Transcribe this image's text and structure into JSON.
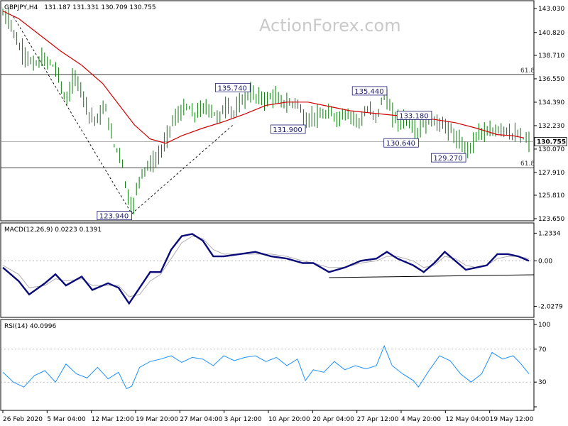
{
  "watermark": "ActionForex.com",
  "chart_data": [
    {
      "type": "candlestick",
      "title": "GBPJPY,H4",
      "ohlc": {
        "open": 131.187,
        "high": 131.331,
        "low": 130.709,
        "close": 130.755
      },
      "ohlc_text": "131.187 131.331 130.709 130.755",
      "y_ticks": [
        143.03,
        140.82,
        138.71,
        136.55,
        134.39,
        132.23,
        130.07,
        127.91,
        125.81,
        123.65
      ],
      "y_tick_labels": [
        "143.030",
        "140.820",
        "138.710",
        "136.550",
        "134.390",
        "132.230",
        "130.070",
        "127.910",
        "125.810",
        "123.650"
      ],
      "ylim": [
        123.65,
        143.03
      ],
      "last_price": 130.755,
      "last_price_label": "130.755",
      "x_tick_labels": [
        "26 Feb 2020",
        "5 Mar 04:00",
        "12 Mar 12:00",
        "19 Mar 20:00",
        "27 Mar 04:00",
        "3 Apr 12:00",
        "10 Apr 20:00",
        "20 Apr 04:00",
        "27 Apr 12:00",
        "4 May 20:00",
        "12 May 04:00",
        "19 May 12:00"
      ],
      "fib_levels": [
        {
          "value": 136.95,
          "label": "61.8"
        },
        {
          "value": 128.35,
          "label": "61.8"
        }
      ],
      "annotations": [
        {
          "label": "135.740",
          "value": 135.74,
          "pos": 0.47
        },
        {
          "label": "135.440",
          "value": 135.44,
          "pos": 0.73
        },
        {
          "label": "133.180",
          "value": 133.18,
          "pos": 0.815
        },
        {
          "label": "131.900",
          "value": 131.9,
          "pos": 0.575
        },
        {
          "label": "130.640",
          "value": 130.64,
          "pos": 0.79
        },
        {
          "label": "129.270",
          "value": 129.27,
          "pos": 0.88
        },
        {
          "label": "123.940",
          "value": 123.94,
          "pos": 0.245
        }
      ],
      "trend_lines": [
        [
          {
            "t": 0.02,
            "v": 142.3
          },
          {
            "t": 0.245,
            "v": 124.1
          }
        ],
        [
          {
            "t": 0.245,
            "v": 124.1
          },
          {
            "t": 0.44,
            "v": 132.4
          }
        ]
      ],
      "ma_line": [
        {
          "t": 0.0,
          "v": 142.8
        },
        {
          "t": 0.03,
          "v": 142.1
        },
        {
          "t": 0.07,
          "v": 140.6
        },
        {
          "t": 0.11,
          "v": 139.1
        },
        {
          "t": 0.15,
          "v": 137.8
        },
        {
          "t": 0.19,
          "v": 136.1
        },
        {
          "t": 0.22,
          "v": 134.2
        },
        {
          "t": 0.25,
          "v": 132.3
        },
        {
          "t": 0.28,
          "v": 131.0
        },
        {
          "t": 0.31,
          "v": 130.6
        },
        {
          "t": 0.34,
          "v": 131.3
        },
        {
          "t": 0.38,
          "v": 132.0
        },
        {
          "t": 0.42,
          "v": 132.6
        },
        {
          "t": 0.46,
          "v": 133.3
        },
        {
          "t": 0.5,
          "v": 134.1
        },
        {
          "t": 0.54,
          "v": 134.4
        },
        {
          "t": 0.58,
          "v": 134.4
        },
        {
          "t": 0.62,
          "v": 134.0
        },
        {
          "t": 0.66,
          "v": 133.6
        },
        {
          "t": 0.7,
          "v": 133.4
        },
        {
          "t": 0.74,
          "v": 133.2
        },
        {
          "t": 0.78,
          "v": 133.0
        },
        {
          "t": 0.82,
          "v": 132.8
        },
        {
          "t": 0.86,
          "v": 132.5
        },
        {
          "t": 0.9,
          "v": 132.0
        },
        {
          "t": 0.94,
          "v": 131.4
        },
        {
          "t": 0.97,
          "v": 131.3
        },
        {
          "t": 0.99,
          "v": 131.1
        }
      ],
      "price_path": [
        {
          "t": 0.0,
          "v": 142.5
        },
        {
          "t": 0.015,
          "v": 141.8
        },
        {
          "t": 0.03,
          "v": 139.5
        },
        {
          "t": 0.045,
          "v": 138.6
        },
        {
          "t": 0.06,
          "v": 137.8
        },
        {
          "t": 0.075,
          "v": 138.3
        },
        {
          "t": 0.09,
          "v": 138.1
        },
        {
          "t": 0.105,
          "v": 137.1
        },
        {
          "t": 0.12,
          "v": 134.2
        },
        {
          "t": 0.135,
          "v": 136.8
        },
        {
          "t": 0.15,
          "v": 135.5
        },
        {
          "t": 0.165,
          "v": 133.2
        },
        {
          "t": 0.18,
          "v": 132.8
        },
        {
          "t": 0.195,
          "v": 134.0
        },
        {
          "t": 0.21,
          "v": 130.6
        },
        {
          "t": 0.225,
          "v": 129.5
        },
        {
          "t": 0.235,
          "v": 126.2
        },
        {
          "t": 0.245,
          "v": 124.3
        },
        {
          "t": 0.26,
          "v": 127.5
        },
        {
          "t": 0.275,
          "v": 128.6
        },
        {
          "t": 0.29,
          "v": 128.9
        },
        {
          "t": 0.305,
          "v": 130.3
        },
        {
          "t": 0.32,
          "v": 132.4
        },
        {
          "t": 0.335,
          "v": 133.3
        },
        {
          "t": 0.35,
          "v": 134.0
        },
        {
          "t": 0.365,
          "v": 133.2
        },
        {
          "t": 0.38,
          "v": 133.9
        },
        {
          "t": 0.395,
          "v": 133.7
        },
        {
          "t": 0.41,
          "v": 132.9
        },
        {
          "t": 0.425,
          "v": 134.1
        },
        {
          "t": 0.44,
          "v": 133.4
        },
        {
          "t": 0.455,
          "v": 134.6
        },
        {
          "t": 0.47,
          "v": 135.2
        },
        {
          "t": 0.485,
          "v": 134.9
        },
        {
          "t": 0.5,
          "v": 134.6
        },
        {
          "t": 0.515,
          "v": 135.0
        },
        {
          "t": 0.53,
          "v": 134.4
        },
        {
          "t": 0.545,
          "v": 134.2
        },
        {
          "t": 0.56,
          "v": 134.5
        },
        {
          "t": 0.575,
          "v": 132.4
        },
        {
          "t": 0.59,
          "v": 133.2
        },
        {
          "t": 0.605,
          "v": 133.0
        },
        {
          "t": 0.62,
          "v": 133.4
        },
        {
          "t": 0.635,
          "v": 132.9
        },
        {
          "t": 0.65,
          "v": 133.3
        },
        {
          "t": 0.665,
          "v": 133.1
        },
        {
          "t": 0.68,
          "v": 132.6
        },
        {
          "t": 0.695,
          "v": 133.8
        },
        {
          "t": 0.71,
          "v": 133.0
        },
        {
          "t": 0.725,
          "v": 135.1
        },
        {
          "t": 0.74,
          "v": 133.3
        },
        {
          "t": 0.755,
          "v": 132.6
        },
        {
          "t": 0.77,
          "v": 132.9
        },
        {
          "t": 0.785,
          "v": 131.4
        },
        {
          "t": 0.8,
          "v": 132.3
        },
        {
          "t": 0.815,
          "v": 132.8
        },
        {
          "t": 0.83,
          "v": 132.4
        },
        {
          "t": 0.845,
          "v": 132.1
        },
        {
          "t": 0.86,
          "v": 131.2
        },
        {
          "t": 0.875,
          "v": 130.2
        },
        {
          "t": 0.89,
          "v": 130.3
        },
        {
          "t": 0.905,
          "v": 131.8
        },
        {
          "t": 0.92,
          "v": 131.5
        },
        {
          "t": 0.935,
          "v": 131.7
        },
        {
          "t": 0.95,
          "v": 132.0
        },
        {
          "t": 0.965,
          "v": 131.5
        },
        {
          "t": 0.985,
          "v": 131.2
        },
        {
          "t": 1.0,
          "v": 130.8
        }
      ]
    },
    {
      "type": "line",
      "title": "MACD(12,26,9) 0.0223 0.1391",
      "y_tick_labels": [
        "1.2334",
        "0.00",
        "-2.0279"
      ],
      "y_ticks": [
        1.2334,
        0.0,
        -2.0279
      ],
      "ylim": [
        -2.3,
        1.5
      ],
      "support_line": [
        {
          "t": 0.62,
          "v": -0.75
        },
        {
          "t": 1.0,
          "v": -0.62
        }
      ],
      "macd": [
        {
          "t": 0.0,
          "v": -0.3
        },
        {
          "t": 0.03,
          "v": -0.9
        },
        {
          "t": 0.05,
          "v": -1.5
        },
        {
          "t": 0.08,
          "v": -1.0
        },
        {
          "t": 0.1,
          "v": -0.6
        },
        {
          "t": 0.12,
          "v": -1.1
        },
        {
          "t": 0.15,
          "v": -0.7
        },
        {
          "t": 0.17,
          "v": -1.3
        },
        {
          "t": 0.2,
          "v": -1.0
        },
        {
          "t": 0.22,
          "v": -1.2
        },
        {
          "t": 0.24,
          "v": -1.9
        },
        {
          "t": 0.26,
          "v": -1.2
        },
        {
          "t": 0.28,
          "v": -0.5
        },
        {
          "t": 0.3,
          "v": -0.5
        },
        {
          "t": 0.32,
          "v": 0.5
        },
        {
          "t": 0.34,
          "v": 1.1
        },
        {
          "t": 0.36,
          "v": 1.2
        },
        {
          "t": 0.38,
          "v": 0.9
        },
        {
          "t": 0.4,
          "v": 0.2
        },
        {
          "t": 0.42,
          "v": 0.2
        },
        {
          "t": 0.45,
          "v": 0.3
        },
        {
          "t": 0.48,
          "v": 0.4
        },
        {
          "t": 0.51,
          "v": 0.2
        },
        {
          "t": 0.54,
          "v": 0.1
        },
        {
          "t": 0.57,
          "v": -0.1
        },
        {
          "t": 0.59,
          "v": -0.1
        },
        {
          "t": 0.62,
          "v": -0.5
        },
        {
          "t": 0.65,
          "v": -0.3
        },
        {
          "t": 0.68,
          "v": 0.0
        },
        {
          "t": 0.71,
          "v": 0.1
        },
        {
          "t": 0.73,
          "v": 0.4
        },
        {
          "t": 0.75,
          "v": 0.1
        },
        {
          "t": 0.78,
          "v": -0.2
        },
        {
          "t": 0.8,
          "v": -0.5
        },
        {
          "t": 0.82,
          "v": -0.1
        },
        {
          "t": 0.84,
          "v": 0.4
        },
        {
          "t": 0.86,
          "v": 0.0
        },
        {
          "t": 0.88,
          "v": -0.4
        },
        {
          "t": 0.9,
          "v": -0.3
        },
        {
          "t": 0.92,
          "v": -0.2
        },
        {
          "t": 0.94,
          "v": 0.3
        },
        {
          "t": 0.96,
          "v": 0.3
        },
        {
          "t": 0.98,
          "v": 0.2
        },
        {
          "t": 1.0,
          "v": 0.0
        }
      ],
      "signal": [
        {
          "t": 0.0,
          "v": -0.2
        },
        {
          "t": 0.03,
          "v": -0.6
        },
        {
          "t": 0.05,
          "v": -1.2
        },
        {
          "t": 0.08,
          "v": -1.1
        },
        {
          "t": 0.1,
          "v": -0.8
        },
        {
          "t": 0.12,
          "v": -0.9
        },
        {
          "t": 0.15,
          "v": -0.8
        },
        {
          "t": 0.17,
          "v": -1.1
        },
        {
          "t": 0.2,
          "v": -1.1
        },
        {
          "t": 0.22,
          "v": -1.1
        },
        {
          "t": 0.24,
          "v": -1.6
        },
        {
          "t": 0.26,
          "v": -1.5
        },
        {
          "t": 0.28,
          "v": -0.9
        },
        {
          "t": 0.3,
          "v": -0.6
        },
        {
          "t": 0.32,
          "v": 0.1
        },
        {
          "t": 0.34,
          "v": 0.8
        },
        {
          "t": 0.36,
          "v": 1.1
        },
        {
          "t": 0.38,
          "v": 1.0
        },
        {
          "t": 0.4,
          "v": 0.5
        },
        {
          "t": 0.42,
          "v": 0.3
        },
        {
          "t": 0.45,
          "v": 0.3
        },
        {
          "t": 0.48,
          "v": 0.3
        },
        {
          "t": 0.51,
          "v": 0.3
        },
        {
          "t": 0.54,
          "v": 0.2
        },
        {
          "t": 0.57,
          "v": 0.0
        },
        {
          "t": 0.59,
          "v": -0.1
        },
        {
          "t": 0.62,
          "v": -0.3
        },
        {
          "t": 0.65,
          "v": -0.3
        },
        {
          "t": 0.68,
          "v": -0.1
        },
        {
          "t": 0.71,
          "v": 0.0
        },
        {
          "t": 0.73,
          "v": 0.2
        },
        {
          "t": 0.75,
          "v": 0.2
        },
        {
          "t": 0.78,
          "v": 0.0
        },
        {
          "t": 0.8,
          "v": -0.3
        },
        {
          "t": 0.82,
          "v": -0.2
        },
        {
          "t": 0.84,
          "v": 0.2
        },
        {
          "t": 0.86,
          "v": 0.1
        },
        {
          "t": 0.88,
          "v": -0.2
        },
        {
          "t": 0.9,
          "v": -0.3
        },
        {
          "t": 0.92,
          "v": -0.2
        },
        {
          "t": 0.94,
          "v": 0.1
        },
        {
          "t": 0.96,
          "v": 0.2
        },
        {
          "t": 0.98,
          "v": 0.2
        },
        {
          "t": 1.0,
          "v": 0.1
        }
      ]
    },
    {
      "type": "line",
      "title": "RSI(14) 40.0996",
      "y_ticks": [
        100,
        70,
        30,
        0
      ],
      "y_tick_labels": [
        "100",
        "70",
        "30",
        "0"
      ],
      "levels": [
        70,
        30
      ],
      "ylim": [
        0,
        100
      ],
      "rsi": [
        {
          "t": 0.0,
          "v": 42
        },
        {
          "t": 0.02,
          "v": 30
        },
        {
          "t": 0.04,
          "v": 24
        },
        {
          "t": 0.06,
          "v": 38
        },
        {
          "t": 0.08,
          "v": 44
        },
        {
          "t": 0.1,
          "v": 30
        },
        {
          "t": 0.12,
          "v": 52
        },
        {
          "t": 0.14,
          "v": 40
        },
        {
          "t": 0.16,
          "v": 35
        },
        {
          "t": 0.18,
          "v": 48
        },
        {
          "t": 0.2,
          "v": 34
        },
        {
          "t": 0.22,
          "v": 42
        },
        {
          "t": 0.235,
          "v": 22
        },
        {
          "t": 0.245,
          "v": 25
        },
        {
          "t": 0.26,
          "v": 48
        },
        {
          "t": 0.28,
          "v": 55
        },
        {
          "t": 0.3,
          "v": 58
        },
        {
          "t": 0.32,
          "v": 62
        },
        {
          "t": 0.34,
          "v": 54
        },
        {
          "t": 0.36,
          "v": 60
        },
        {
          "t": 0.38,
          "v": 58
        },
        {
          "t": 0.4,
          "v": 50
        },
        {
          "t": 0.42,
          "v": 62
        },
        {
          "t": 0.44,
          "v": 56
        },
        {
          "t": 0.46,
          "v": 60
        },
        {
          "t": 0.48,
          "v": 62
        },
        {
          "t": 0.5,
          "v": 55
        },
        {
          "t": 0.52,
          "v": 60
        },
        {
          "t": 0.54,
          "v": 50
        },
        {
          "t": 0.56,
          "v": 58
        },
        {
          "t": 0.575,
          "v": 32
        },
        {
          "t": 0.59,
          "v": 45
        },
        {
          "t": 0.61,
          "v": 42
        },
        {
          "t": 0.63,
          "v": 55
        },
        {
          "t": 0.65,
          "v": 45
        },
        {
          "t": 0.67,
          "v": 50
        },
        {
          "t": 0.69,
          "v": 46
        },
        {
          "t": 0.71,
          "v": 50
        },
        {
          "t": 0.725,
          "v": 74
        },
        {
          "t": 0.74,
          "v": 50
        },
        {
          "t": 0.76,
          "v": 40
        },
        {
          "t": 0.78,
          "v": 32
        },
        {
          "t": 0.79,
          "v": 24
        },
        {
          "t": 0.81,
          "v": 44
        },
        {
          "t": 0.83,
          "v": 62
        },
        {
          "t": 0.85,
          "v": 56
        },
        {
          "t": 0.87,
          "v": 40
        },
        {
          "t": 0.89,
          "v": 30
        },
        {
          "t": 0.91,
          "v": 40
        },
        {
          "t": 0.93,
          "v": 66
        },
        {
          "t": 0.95,
          "v": 58
        },
        {
          "t": 0.97,
          "v": 62
        },
        {
          "t": 0.985,
          "v": 52
        },
        {
          "t": 1.0,
          "v": 40
        }
      ]
    }
  ]
}
